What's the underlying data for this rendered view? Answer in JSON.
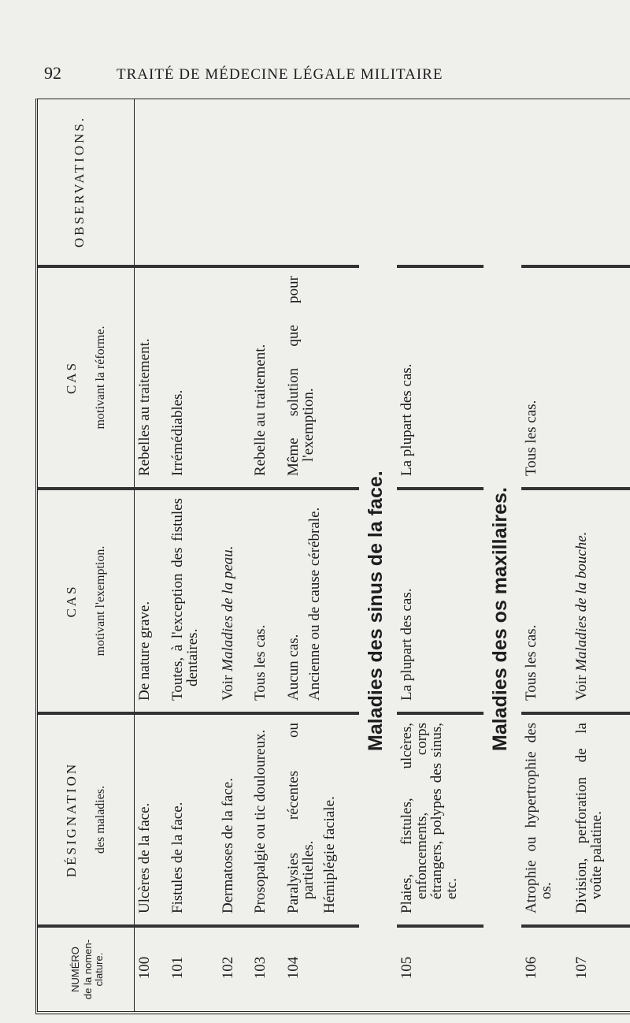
{
  "header": {
    "page_number": "92",
    "running_title": "TRAITÉ DE MÉDECINE LÉGALE MILITAIRE"
  },
  "table": {
    "columns": [
      {
        "title": "NUMÉRO",
        "subtitle": "de la nomen-clature."
      },
      {
        "title": "DÉSIGNATION",
        "subtitle": "des maladies."
      },
      {
        "title": "CAS",
        "subtitle": "motivant l'exemption."
      },
      {
        "title": "CAS",
        "subtitle": "motivant la réforme."
      },
      {
        "title": "OBSERVATIONS."
      }
    ],
    "rows": [
      {
        "number": "100",
        "designation": "Ulcères de la face.",
        "exemption": "De nature grave.",
        "reforme": "Rebelles au traitement."
      },
      {
        "number": "101",
        "designation": "Fistules de la face.",
        "exemption": "Toutes, à l'exception des fistules dentaires.",
        "reforme": "Irrémédiables."
      },
      {
        "number": "102",
        "designation": "Dermatoses de la face.",
        "exemption": {
          "text": "Voir",
          "ref": "Maladies de la peau."
        }
      },
      {
        "number": "103",
        "designation": "Prosopalgie ou tic douloureux.",
        "exemption": "Tous les cas.",
        "reforme": "Rebelle au traitement."
      },
      {
        "number": "104",
        "designation": [
          "Paralysies récentes ou partielles.",
          "Hémiplégie faciale."
        ],
        "exemption": [
          "Aucun cas.",
          "Ancienne ou de cause cérébrale."
        ],
        "reforme": "Même solution que pour l'exemption."
      },
      {
        "section": "Maladies des sinus de la face."
      },
      {
        "number": "105",
        "designation": "Plaies, fistules, ulcères, enfoncements, corps étrangers, polypes des sinus, etc.",
        "exemption": "La plupart des cas.",
        "reforme": "La plupart des cas."
      },
      {
        "section": "Maladies des os maxillaires."
      },
      {
        "number": "106",
        "designation": "Atrophie ou hypertrophie des os.",
        "exemption": "Tous les cas.",
        "reforme": "Tous les cas."
      },
      {
        "number": "107",
        "designation": "Division, perforation de la voûte palatine.",
        "exemption": {
          "text": "Voir",
          "ref": "Maladies de la bouche."
        }
      }
    ]
  }
}
